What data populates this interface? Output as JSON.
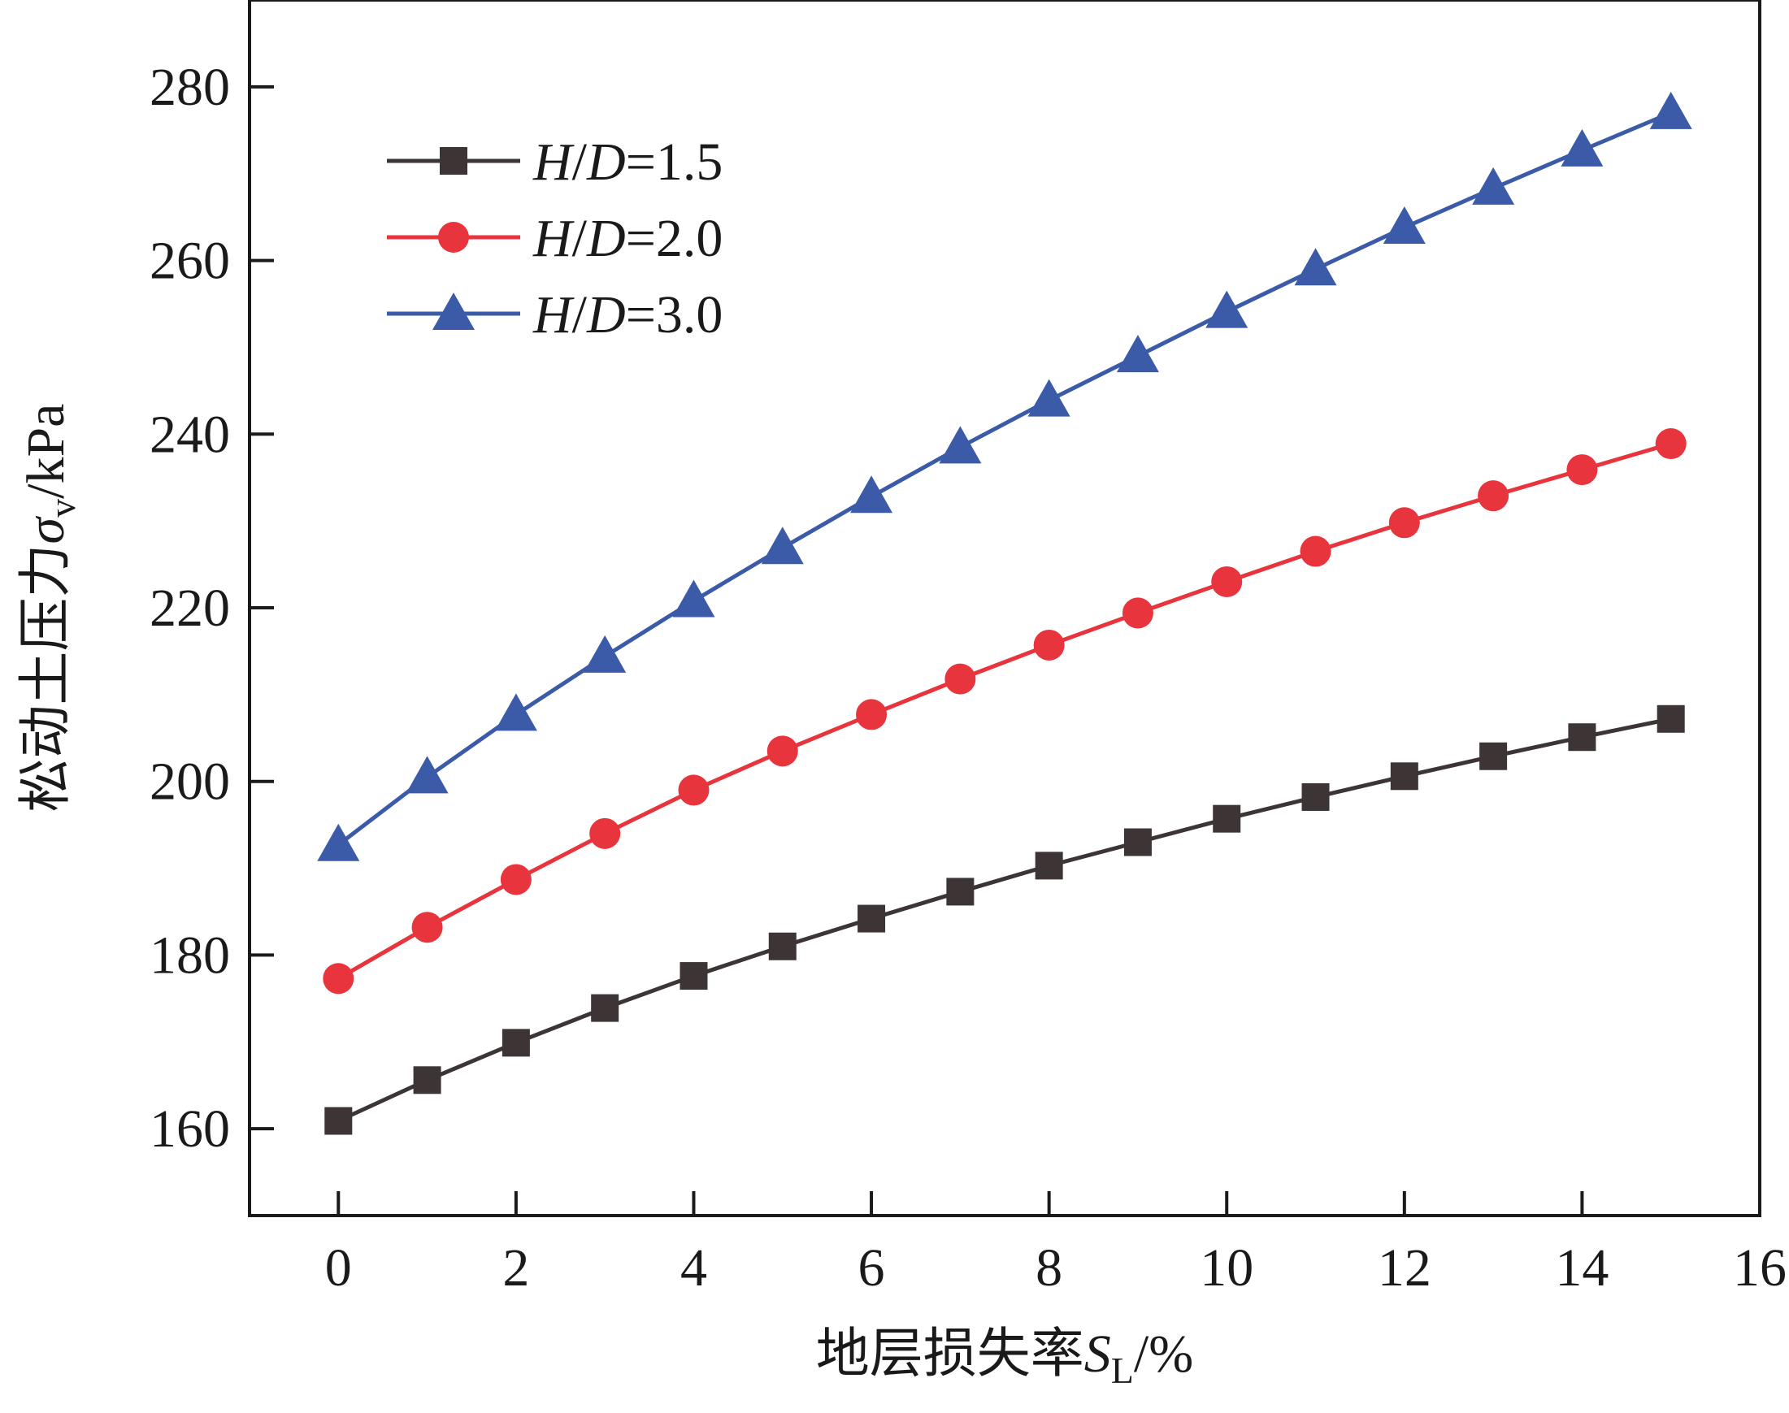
{
  "chart_data": {
    "type": "line",
    "xlabel": "地层损失率S_L/%",
    "xlabel_prefix": "地层损失率",
    "xlabel_symbol": "S",
    "xlabel_subscript": "L",
    "xlabel_unit": "/%",
    "ylabel": "松动土压力σ_v/kPa",
    "ylabel_prefix": "松动土压力",
    "ylabel_symbol": "σ",
    "ylabel_subscript": "v",
    "ylabel_unit": "/kPa",
    "xlim": [
      -1,
      16
    ],
    "ylim": [
      150,
      290
    ],
    "xticks": [
      0,
      2,
      4,
      6,
      8,
      10,
      12,
      14,
      16
    ],
    "yticks": [
      160,
      180,
      200,
      220,
      240,
      260,
      280
    ],
    "grid": false,
    "legend_position": "top-left",
    "x": [
      0,
      1,
      2,
      3,
      4,
      5,
      6,
      7,
      8,
      9,
      10,
      11,
      12,
      13,
      14,
      15
    ],
    "series": [
      {
        "name": "H/D=1.5",
        "name_parts": [
          "H",
          "/",
          "D",
          "=1.5"
        ],
        "color": "#3d3535",
        "marker": "square",
        "values": [
          160.9,
          165.6,
          169.9,
          173.9,
          177.6,
          181.0,
          184.2,
          187.3,
          190.3,
          193.0,
          195.7,
          198.2,
          200.6,
          202.9,
          205.1,
          207.2
        ]
      },
      {
        "name": "H/D=2.0",
        "name_parts": [
          "H",
          "/",
          "D",
          "=2.0"
        ],
        "color": "#e8343c",
        "marker": "circle",
        "values": [
          177.3,
          183.2,
          188.7,
          194.0,
          199.0,
          203.5,
          207.7,
          211.8,
          215.7,
          219.4,
          223.0,
          226.5,
          229.8,
          232.9,
          235.9,
          238.9
        ]
      },
      {
        "name": "H/D=3.0",
        "name_parts": [
          "H",
          "/",
          "D",
          "=3.0"
        ],
        "color": "#3b5aa8",
        "marker": "triangle",
        "values": [
          192.7,
          200.5,
          207.7,
          214.4,
          220.8,
          226.9,
          232.8,
          238.5,
          243.9,
          249.0,
          254.1,
          259.0,
          263.8,
          268.3,
          272.7,
          277.0
        ]
      }
    ]
  }
}
